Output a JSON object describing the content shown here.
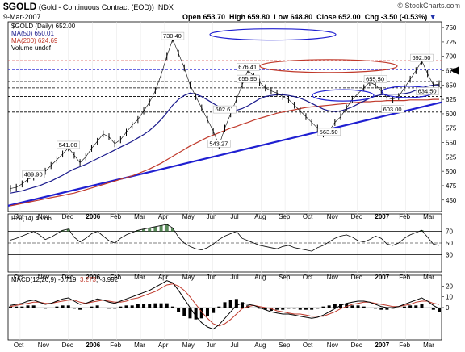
{
  "header": {
    "symbol": "$GOLD",
    "description": "(Gold - Continuous Contract (EOD))",
    "exchange": "INDX",
    "date": "9-Mar-2007",
    "watermark": "© StockCharts.com",
    "open": "Open 653.70",
    "high": "High 659.80",
    "low": "Low 648.80",
    "close": "Close 652.00",
    "chg": "Chg -3.50 (-0.53%)"
  },
  "legend": {
    "price": "$GOLD (Daily) 652.00",
    "ma50": "MA(50) 650.01",
    "ma200": "MA(200) 624.69",
    "volume": "Volume undef"
  },
  "rsi_label": "RSI(14) 45.66",
  "macd_label": {
    "name": "MACD(12,26,9)",
    "macd": "-0.719",
    "signal": "3.273",
    "hist": "-3.992"
  },
  "colors": {
    "price": "#000000",
    "ma50": "#1a1a8c",
    "ma200": "#c0392b",
    "trendline": "#1f1fd1",
    "ellipse_blue": "#1f1fd1",
    "ellipse_red": "#c0392b",
    "hline_red": "#d9534f",
    "hline_blue": "#3c3cd9",
    "rsi_fill": "#5a8a5a",
    "macd_line": "#000000",
    "signal_line": "#c0392b",
    "hist": "#000000"
  },
  "annotations": {
    "peak_may": "730.40",
    "jul_high": "676.41",
    "jul_low_line": "655.95",
    "dec_high": "655.50",
    "feb_high": "692.50",
    "mar_low": "634.50",
    "jul_low": "602.61",
    "jan_low": "603.00",
    "oct_low": "563.50",
    "jun_low": "543.27",
    "dec05_high": "541.00",
    "nov05_low": "489.90"
  },
  "chart_data": {
    "type": "line",
    "x_labels": [
      "Oct",
      "Nov",
      "Dec",
      "2006",
      "Feb",
      "Mar",
      "Apr",
      "May",
      "Jun",
      "Jul",
      "Aug",
      "Sep",
      "Oct",
      "Nov",
      "Dec",
      "2007",
      "Feb",
      "Mar"
    ],
    "y_ticks": [
      450,
      475,
      500,
      525,
      550,
      575,
      600,
      625,
      650,
      675,
      700,
      725,
      750
    ],
    "ylim": [
      430,
      760
    ],
    "series": [
      {
        "name": "$GOLD (Daily)",
        "values": [
          470,
          472,
          478,
          486,
          490,
          495,
          500,
          510,
          520,
          530,
          541,
          528,
          515,
          525,
          540,
          552,
          565,
          560,
          548,
          555,
          568,
          580,
          590,
          605,
          620,
          640,
          668,
          700,
          730,
          705,
          680,
          650,
          630,
          610,
          590,
          570,
          545,
          575,
          600,
          625,
          650,
          676,
          665,
          655,
          645,
          640,
          636,
          630,
          625,
          615,
          605,
          595,
          585,
          575,
          565,
          570,
          585,
          595,
          610,
          625,
          635,
          645,
          655,
          650,
          640,
          628,
          625,
          630,
          645,
          660,
          675,
          692,
          670,
          650,
          652
        ]
      },
      {
        "name": "MA(50)",
        "values": [
          462,
          464,
          466,
          469,
          472,
          475,
          479,
          483,
          488,
          493,
          499,
          504,
          508,
          512,
          517,
          522,
          527,
          532,
          537,
          542,
          547,
          552,
          558,
          564,
          571,
          580,
          590,
          602,
          615,
          625,
          632,
          636,
          634,
          630,
          624,
          618,
          612,
          608,
          606,
          606,
          609,
          614,
          620,
          626,
          630,
          632,
          633,
          633,
          632,
          630,
          627,
          623,
          618,
          613,
          608,
          605,
          604,
          605,
          608,
          612,
          617,
          622,
          627,
          631,
          633,
          634,
          634,
          634,
          635,
          637,
          641,
          645,
          648,
          650,
          650
        ]
      },
      {
        "name": "MA(200)",
        "values": [
          440,
          442,
          444,
          446,
          448,
          450,
          452,
          454,
          456,
          458,
          460,
          462,
          465,
          468,
          471,
          474,
          477,
          480,
          483,
          486,
          489,
          492,
          496,
          500,
          504,
          509,
          514,
          520,
          526,
          532,
          538,
          544,
          549,
          554,
          559,
          563,
          567,
          571,
          575,
          578,
          582,
          585,
          589,
          592,
          595,
          598,
          601,
          603,
          605,
          607,
          609,
          611,
          612,
          613,
          614,
          615,
          616,
          617,
          618,
          619,
          620,
          621,
          621,
          622,
          622,
          623,
          623,
          623,
          623,
          624,
          624,
          624,
          624,
          625,
          625
        ]
      }
    ],
    "rsi": {
      "levels": [
        30,
        50,
        70
      ],
      "ylim": [
        0,
        100
      ],
      "values": [
        55,
        58,
        62,
        66,
        70,
        64,
        56,
        60,
        66,
        72,
        74,
        60,
        52,
        58,
        66,
        70,
        62,
        54,
        50,
        58,
        64,
        68,
        72,
        74,
        76,
        78,
        80,
        82,
        76,
        60,
        50,
        44,
        40,
        38,
        42,
        48,
        56,
        62,
        66,
        70,
        58,
        54,
        50,
        46,
        44,
        42,
        40,
        44,
        46,
        42,
        40,
        38,
        36,
        42,
        46,
        52,
        58,
        62,
        64,
        60,
        54,
        52,
        56,
        62,
        58,
        48,
        46,
        50,
        58,
        64,
        68,
        72,
        60,
        48,
        46
      ]
    },
    "macd": {
      "ylim": [
        -30,
        30
      ],
      "macd": [
        2,
        3,
        4,
        6,
        7,
        5,
        3,
        4,
        6,
        8,
        9,
        6,
        3,
        4,
        6,
        8,
        7,
        5,
        4,
        6,
        8,
        10,
        12,
        14,
        16,
        19,
        22,
        25,
        23,
        16,
        8,
        0,
        -8,
        -14,
        -18,
        -20,
        -16,
        -10,
        -4,
        2,
        4,
        3,
        2,
        0,
        -2,
        -4,
        -5,
        -6,
        -6,
        -7,
        -8,
        -9,
        -10,
        -9,
        -7,
        -4,
        -1,
        2,
        4,
        5,
        6,
        6,
        5,
        3,
        1,
        0,
        0,
        1,
        3,
        5,
        7,
        9,
        6,
        2,
        -1
      ],
      "signal": [
        1,
        2,
        3,
        4,
        5,
        5,
        4,
        4,
        5,
        6,
        7,
        7,
        5,
        4,
        5,
        6,
        7,
        6,
        5,
        5,
        6,
        8,
        9,
        11,
        13,
        15,
        18,
        21,
        22,
        20,
        16,
        10,
        3,
        -4,
        -10,
        -15,
        -17,
        -15,
        -11,
        -6,
        -1,
        1,
        2,
        1,
        0,
        -1,
        -3,
        -4,
        -5,
        -6,
        -6,
        -7,
        -8,
        -8,
        -8,
        -6,
        -4,
        -1,
        1,
        3,
        4,
        5,
        5,
        4,
        3,
        2,
        1,
        1,
        2,
        3,
        5,
        6,
        6,
        4,
        3
      ]
    }
  }
}
